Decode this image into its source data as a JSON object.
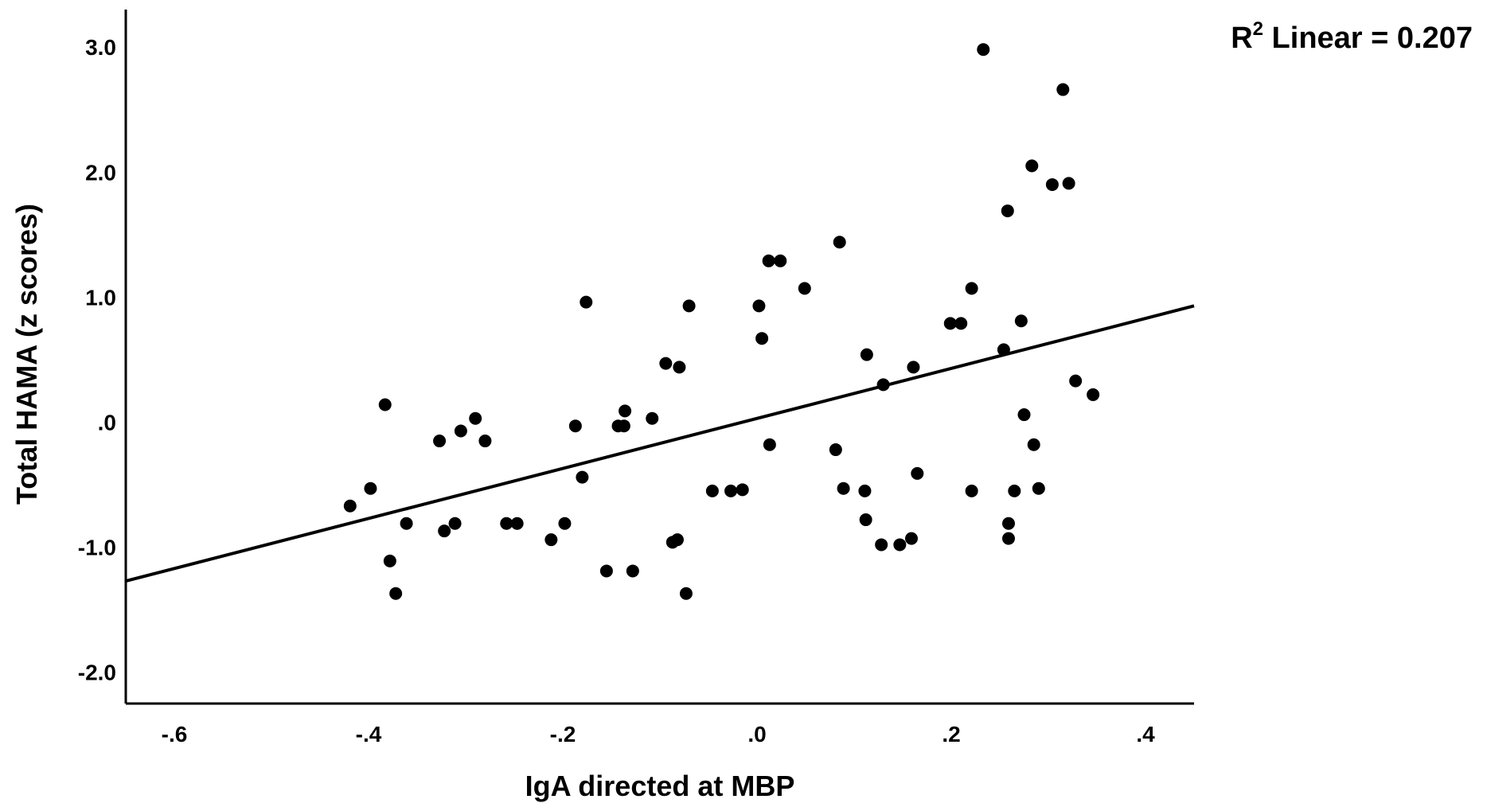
{
  "chart_data": {
    "type": "scatter",
    "xlabel": "IgA directed at MBP",
    "ylabel": "Total HAMA (z scores)",
    "xlim": [
      -0.65,
      0.45
    ],
    "ylim": [
      -2.25,
      3.3
    ],
    "x_ticks": [
      -0.6,
      -0.4,
      -0.2,
      0.0,
      0.2,
      0.4
    ],
    "x_tick_labels": [
      "-.6",
      "-.4",
      "-.2",
      ".0",
      ".2",
      ".4"
    ],
    "y_ticks": [
      -2,
      -1,
      0,
      1,
      2,
      3
    ],
    "y_tick_labels": [
      "-2.0",
      "-1.0",
      ".0",
      "1.0",
      "2.0",
      "3.0"
    ],
    "grid": false,
    "legend": "none",
    "annotation": {
      "r_label": "R",
      "sup": "2",
      "text": " Linear = 0.207"
    },
    "fit_line": {
      "type": "linear",
      "x": [
        -0.65,
        0.45
      ],
      "y": [
        -1.27,
        0.93
      ]
    },
    "points": [
      {
        "x": -0.419,
        "y": -0.67
      },
      {
        "x": -0.398,
        "y": -0.53
      },
      {
        "x": -0.383,
        "y": 0.14
      },
      {
        "x": -0.378,
        "y": -1.11
      },
      {
        "x": -0.372,
        "y": -1.37
      },
      {
        "x": -0.361,
        "y": -0.81
      },
      {
        "x": -0.327,
        "y": -0.15
      },
      {
        "x": -0.322,
        "y": -0.87
      },
      {
        "x": -0.311,
        "y": -0.81
      },
      {
        "x": -0.305,
        "y": -0.07
      },
      {
        "x": -0.29,
        "y": 0.03
      },
      {
        "x": -0.28,
        "y": -0.15
      },
      {
        "x": -0.258,
        "y": -0.81
      },
      {
        "x": -0.247,
        "y": -0.81
      },
      {
        "x": -0.212,
        "y": -0.94
      },
      {
        "x": -0.198,
        "y": -0.81
      },
      {
        "x": -0.187,
        "y": -0.03
      },
      {
        "x": -0.18,
        "y": -0.44
      },
      {
        "x": -0.176,
        "y": 0.96
      },
      {
        "x": -0.155,
        "y": -1.19
      },
      {
        "x": -0.143,
        "y": -0.03
      },
      {
        "x": -0.137,
        "y": -0.03
      },
      {
        "x": -0.136,
        "y": 0.09
      },
      {
        "x": -0.128,
        "y": -1.19
      },
      {
        "x": -0.108,
        "y": 0.03
      },
      {
        "x": -0.094,
        "y": 0.47
      },
      {
        "x": -0.087,
        "y": -0.96
      },
      {
        "x": -0.082,
        "y": -0.94
      },
      {
        "x": -0.08,
        "y": 0.44
      },
      {
        "x": -0.073,
        "y": -1.37
      },
      {
        "x": -0.07,
        "y": 0.93
      },
      {
        "x": -0.046,
        "y": -0.55
      },
      {
        "x": -0.027,
        "y": -0.55
      },
      {
        "x": -0.015,
        "y": -0.54
      },
      {
        "x": 0.002,
        "y": 0.93
      },
      {
        "x": 0.005,
        "y": 0.67
      },
      {
        "x": 0.012,
        "y": 1.29
      },
      {
        "x": 0.013,
        "y": -0.18
      },
      {
        "x": 0.024,
        "y": 1.29
      },
      {
        "x": 0.049,
        "y": 1.07
      },
      {
        "x": 0.081,
        "y": -0.22
      },
      {
        "x": 0.085,
        "y": 1.44
      },
      {
        "x": 0.089,
        "y": -0.53
      },
      {
        "x": 0.111,
        "y": -0.55
      },
      {
        "x": 0.112,
        "y": -0.78
      },
      {
        "x": 0.113,
        "y": 0.54
      },
      {
        "x": 0.128,
        "y": -0.98
      },
      {
        "x": 0.13,
        "y": 0.3
      },
      {
        "x": 0.147,
        "y": -0.98
      },
      {
        "x": 0.159,
        "y": -0.93
      },
      {
        "x": 0.161,
        "y": 0.44
      },
      {
        "x": 0.165,
        "y": -0.41
      },
      {
        "x": 0.199,
        "y": 0.79
      },
      {
        "x": 0.21,
        "y": 0.79
      },
      {
        "x": 0.221,
        "y": 1.07
      },
      {
        "x": 0.221,
        "y": -0.55
      },
      {
        "x": 0.233,
        "y": 2.98
      },
      {
        "x": 0.254,
        "y": 0.58
      },
      {
        "x": 0.258,
        "y": 1.69
      },
      {
        "x": 0.259,
        "y": -0.81
      },
      {
        "x": 0.259,
        "y": -0.93
      },
      {
        "x": 0.265,
        "y": -0.55
      },
      {
        "x": 0.272,
        "y": 0.81
      },
      {
        "x": 0.275,
        "y": 0.06
      },
      {
        "x": 0.283,
        "y": 2.05
      },
      {
        "x": 0.285,
        "y": -0.18
      },
      {
        "x": 0.29,
        "y": -0.53
      },
      {
        "x": 0.304,
        "y": 1.9
      },
      {
        "x": 0.315,
        "y": 2.66
      },
      {
        "x": 0.321,
        "y": 1.91
      },
      {
        "x": 0.328,
        "y": 0.33
      },
      {
        "x": 0.346,
        "y": 0.22
      }
    ]
  }
}
